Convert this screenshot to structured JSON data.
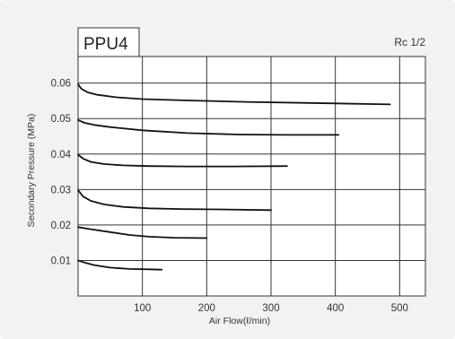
{
  "chart_data": {
    "type": "line",
    "title": "PPU4",
    "subtitle": "Rc 1/2",
    "xlabel": "Air Flow(ℓ/min)",
    "ylabel": "Secondary Pressure (MPa)",
    "xlim": [
      0,
      540
    ],
    "ylim": [
      0,
      0.0675
    ],
    "x_ticks": [
      100,
      200,
      300,
      400,
      500
    ],
    "y_ticks": [
      0.01,
      0.02,
      0.03,
      0.04,
      0.05,
      0.06
    ],
    "x_tick_labels": [
      "100",
      "200",
      "300",
      "400",
      "500"
    ],
    "y_tick_labels": [
      "0.01",
      "0.02",
      "0.03",
      "0.04",
      "0.05",
      "0.06"
    ],
    "grid": true,
    "series": [
      {
        "x": [
          0,
          10,
          25,
          50,
          80,
          110,
          130
        ],
        "y": [
          0.01,
          0.0094,
          0.0087,
          0.008,
          0.0076,
          0.0075,
          0.0074
        ]
      },
      {
        "x": [
          0,
          20,
          50,
          80,
          110,
          150,
          200
        ],
        "y": [
          0.0194,
          0.0188,
          0.018,
          0.0172,
          0.0167,
          0.0164,
          0.0163
        ]
      },
      {
        "x": [
          0,
          8,
          20,
          40,
          70,
          110,
          160,
          220,
          300
        ],
        "y": [
          0.0298,
          0.028,
          0.0268,
          0.0258,
          0.0251,
          0.0247,
          0.0245,
          0.0244,
          0.0242
        ]
      },
      {
        "x": [
          0,
          8,
          20,
          40,
          70,
          110,
          170,
          240,
          325
        ],
        "y": [
          0.0398,
          0.0387,
          0.0378,
          0.0372,
          0.0368,
          0.0366,
          0.0365,
          0.0365,
          0.0366
        ]
      },
      {
        "x": [
          0,
          10,
          25,
          50,
          100,
          170,
          250,
          320,
          405
        ],
        "y": [
          0.0496,
          0.0488,
          0.0482,
          0.0476,
          0.0467,
          0.0459,
          0.0455,
          0.0454,
          0.0454
        ]
      },
      {
        "x": [
          0,
          5,
          15,
          30,
          60,
          100,
          170,
          260,
          360,
          485
        ],
        "y": [
          0.0597,
          0.0584,
          0.0574,
          0.0567,
          0.056,
          0.0555,
          0.0551,
          0.0547,
          0.0544,
          0.054
        ]
      }
    ]
  },
  "colors": {
    "background": "#f2f2f2",
    "plot_area": "#ffffff",
    "grid": "#333333",
    "series_line": "#111111",
    "text": "#333333"
  }
}
